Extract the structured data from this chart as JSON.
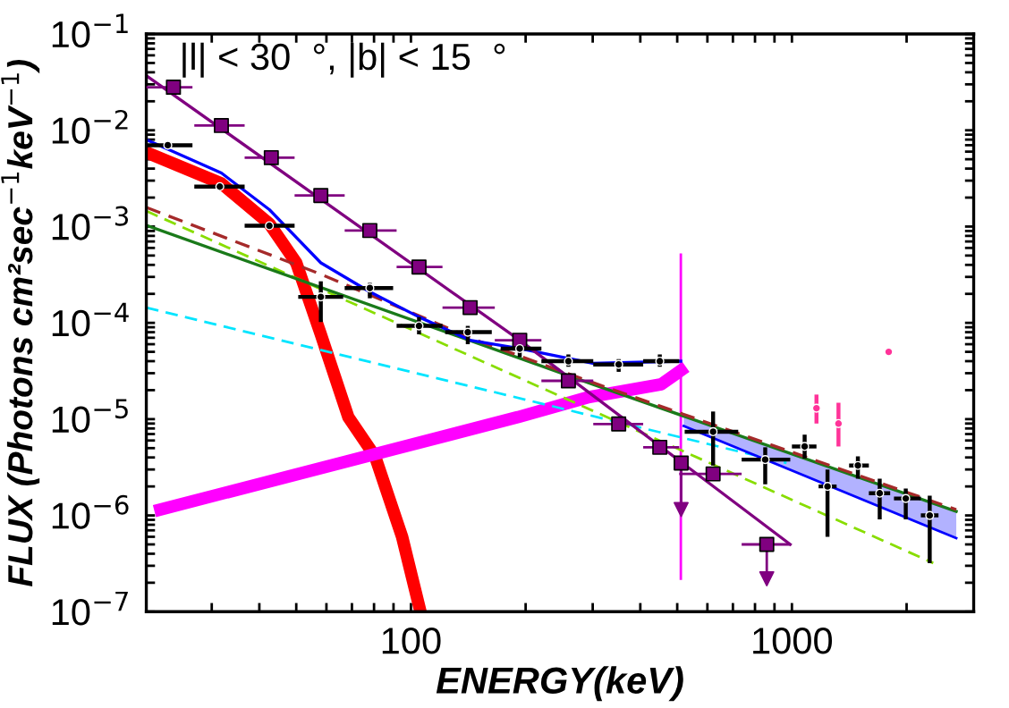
{
  "chart_data": {
    "type": "line",
    "xlabel": "ENERGY(keV)",
    "ylabel": "FLUX (Photons cm²sec$^{−1}$keV$^{−1}$)",
    "annotations": [
      "|l| < 30  °, |b| < 15  °"
    ],
    "log": "xy",
    "grid": false,
    "legend": false,
    "xlim": [
      20.2,
      3000
    ],
    "ylim": [
      1e-07,
      0.1
    ],
    "xticks": [
      {
        "value": 30,
        "label": null
      },
      {
        "value": 40,
        "label": null
      },
      {
        "value": 50,
        "label": null
      },
      {
        "value": 60,
        "label": null
      },
      {
        "value": 70,
        "label": null
      },
      {
        "value": 80,
        "label": null
      },
      {
        "value": 90,
        "label": null
      },
      100,
      {
        "value": 200,
        "label": null
      },
      {
        "value": 300,
        "label": null
      },
      {
        "value": 400,
        "label": null
      },
      {
        "value": 500,
        "label": null
      },
      {
        "value": 600,
        "label": null
      },
      {
        "value": 700,
        "label": null
      },
      {
        "value": 800,
        "label": null
      },
      {
        "value": 900,
        "label": null
      },
      1000,
      {
        "value": 2000,
        "label": null
      }
    ],
    "yticks": [
      {
        "value": 1e-07,
        "label": "10$^{−7}$"
      },
      {
        "value": 2e-07,
        "label": null
      },
      {
        "value": 3e-07,
        "label": null
      },
      {
        "value": 4e-07,
        "label": null
      },
      {
        "value": 5e-07,
        "label": null
      },
      {
        "value": 6e-07,
        "label": null
      },
      {
        "value": 7e-07,
        "label": null
      },
      {
        "value": 8e-07,
        "label": null
      },
      {
        "value": 9e-07,
        "label": null
      },
      {
        "value": 1e-06,
        "label": "10$^{−6}$"
      },
      {
        "value": 2e-06,
        "label": null
      },
      {
        "value": 3e-06,
        "label": null
      },
      {
        "value": 4e-06,
        "label": null
      },
      {
        "value": 5e-06,
        "label": null
      },
      {
        "value": 6e-06,
        "label": null
      },
      {
        "value": 7e-06,
        "label": null
      },
      {
        "value": 8e-06,
        "label": null
      },
      {
        "value": 9e-06,
        "label": null
      },
      {
        "value": 1e-05,
        "label": "10$^{−5}$"
      },
      {
        "value": 2e-05,
        "label": null
      },
      {
        "value": 3e-05,
        "label": null
      },
      {
        "value": 4e-05,
        "label": null
      },
      {
        "value": 5e-05,
        "label": null
      },
      {
        "value": 6e-05,
        "label": null
      },
      {
        "value": 7e-05,
        "label": null
      },
      {
        "value": 8e-05,
        "label": null
      },
      {
        "value": 9e-05,
        "label": null
      },
      {
        "value": 0.0001,
        "label": "10$^{−4}$"
      },
      {
        "value": 0.0002,
        "label": null
      },
      {
        "value": 0.0003,
        "label": null
      },
      {
        "value": 0.0004,
        "label": null
      },
      {
        "value": 0.0005,
        "label": null
      },
      {
        "value": 0.0006,
        "label": null
      },
      {
        "value": 0.0007,
        "label": null
      },
      {
        "value": 0.0008,
        "label": null
      },
      {
        "value": 0.0009,
        "label": null
      },
      {
        "value": 0.001,
        "label": "10$^{−3}$"
      },
      {
        "value": 0.002,
        "label": null
      },
      {
        "value": 0.003,
        "label": null
      },
      {
        "value": 0.004,
        "label": null
      },
      {
        "value": 0.005,
        "label": null
      },
      {
        "value": 0.006,
        "label": null
      },
      {
        "value": 0.007,
        "label": null
      },
      {
        "value": 0.008,
        "label": null
      },
      {
        "value": 0.009,
        "label": null
      },
      {
        "value": 0.01,
        "label": "10$^{−2}$"
      },
      {
        "value": 0.02,
        "label": null
      },
      {
        "value": 0.03,
        "label": null
      },
      {
        "value": 0.04,
        "label": null
      },
      {
        "value": 0.05,
        "label": null
      },
      {
        "value": 0.06,
        "label": null
      },
      {
        "value": 0.07,
        "label": null
      },
      {
        "value": 0.08,
        "label": null
      },
      {
        "value": 0.09,
        "label": null
      },
      {
        "value": 0.1,
        "label": "10$^{−1}$"
      }
    ],
    "series": [
      {
        "color": "#ff0000",
        "line_style": "solid",
        "x": [
          20.2,
          31.8,
          42.5,
          50,
          58,
          68.5,
          80.5,
          94.8,
          105.5
        ],
        "values": [
          0.0059,
          0.0028,
          0.00107,
          0.00042,
          7.6e-05,
          1.05e-05,
          4.1e-06,
          6e-07,
          1.07e-07
        ]
      },
      {
        "color": "#ff00ff",
        "line_style": "solid",
        "x": [
          22,
          191,
          294,
          454,
          511
        ],
        "values": [
          1.15e-06,
          1.05e-05,
          1.7e-05,
          2.3e-05,
          3.2e-05
        ]
      },
      {
        "color": "#ff00ff",
        "line_style": "solid",
        "x": [
          511,
          511
        ],
        "values": [
          2.2e-07,
          0.00051
        ]
      },
      {
        "color": "#00e5ff",
        "line_style": "dashed",
        "x": [
          20.2,
          968
        ],
        "values": [
          0.000144,
          3.5e-06
        ]
      },
      {
        "color": "#88dd00",
        "line_style": "dashed",
        "x": [
          20.2,
          2350
        ],
        "values": [
          0.00145,
          3.2e-07
        ]
      },
      {
        "color": "#1a7a1a",
        "line_style": "solid",
        "x": [
          20.2,
          300,
          2700
        ],
        "values": [
          0.00103,
          2.3e-05,
          1.1e-06
        ]
      },
      {
        "color": "#a52a2a",
        "line_style": "dashed",
        "x": [
          20.2,
          58,
          150,
          300,
          2700
        ],
        "values": [
          0.00158,
          0.00032,
          6.5e-05,
          2.4e-05,
          1.15e-06
        ]
      },
      {
        "color": "#0000ff",
        "line_style": "solid",
        "x": [
          20.2,
          31.8,
          42.5,
          58,
          78,
          105,
          143,
          193,
          300,
          511
        ],
        "values": [
          0.008,
          0.0036,
          0.0015,
          0.00042,
          0.00021,
          0.000115,
          6.6e-05,
          5.4e-05,
          3.8e-05,
          4e-05
        ]
      },
      {
        "color": "#0000ff",
        "line_style": "solid",
        "x": [
          520,
          2700
        ],
        "values": [
          8.5e-06,
          5.8e-07
        ],
        "lower": [
          8.5e-06,
          5.8e-07
        ],
        "upper": [
          1.1e-05,
          1.1e-06
        ]
      },
      {
        "color": "#800080",
        "line_style": "solid",
        "x": [
          20.2,
          193,
          990
        ],
        "values": [
          0.037,
          6.6e-05,
          5e-07
        ]
      },
      {
        "type": "scatter",
        "color": "#800080",
        "marker": "square",
        "x": [
          23.8,
          31.8,
          43,
          58,
          78,
          105,
          143,
          193,
          259,
          351,
          450,
          512,
          621,
          859
        ],
        "values": [
          0.028,
          0.0112,
          0.0052,
          0.0021,
          0.00091,
          0.00038,
          0.000144,
          6.6e-05,
          2.5e-05,
          8.9e-06,
          5.1e-06,
          3.5e-06,
          2.7e-06,
          5e-07
        ],
        "errors": [
          null,
          null,
          null,
          null,
          null,
          null,
          null,
          null,
          null,
          null,
          null,
          [
            1.15e-06,
            3.5e-06
          ],
          null,
          [
            2.2e-07,
            5e-07
          ]
        ],
        "xerrors": [
          [
            20.2,
            26.7
          ],
          [
            27,
            36.6
          ],
          [
            36.6,
            49.5
          ],
          [
            49.5,
            67
          ],
          [
            67,
            91.7
          ],
          [
            91.7,
            121
          ],
          [
            121,
            166
          ],
          [
            166,
            220
          ],
          [
            220,
            301
          ],
          [
            301,
            407
          ],
          [
            407,
            506
          ],
          null,
          [
            506,
            738
          ],
          [
            738,
            990
          ]
        ]
      },
      {
        "type": "scatter",
        "color": "#800080",
        "marker": "triangle",
        "x": [
          512,
          859
        ],
        "values": [
          1.15e-06,
          2.2e-07
        ]
      },
      {
        "type": "scatter",
        "color": "#ff3399",
        "marker": "circle",
        "x": [
          1160,
          1325,
          1795
        ],
        "values": [
          1.3e-05,
          9e-06,
          5e-05
        ],
        "errors": [
          [
            9e-06,
            1.8e-05
          ],
          [
            5.2e-06,
            1.48e-05
          ],
          [
            4.6e-05,
            5.4e-05
          ]
        ]
      },
      {
        "type": "scatter",
        "color": "#000000",
        "marker": "circle",
        "x": [
          23,
          31.5,
          42.5,
          58,
          78,
          105,
          141,
          193,
          259,
          351,
          450,
          621,
          851,
          1080,
          1240,
          1490,
          1700,
          1990,
          2300
        ],
        "values": [
          0.007,
          0.0026,
          0.00102,
          0.000186,
          0.00023,
          9.3e-05,
          8e-05,
          5.4e-05,
          4e-05,
          3.7e-05,
          4e-05,
          7.4e-06,
          3.8e-06,
          5.2e-06,
          2e-06,
          3.3e-06,
          1.7e-06,
          1.5e-06,
          1e-06
        ],
        "errors": [
          null,
          null,
          null,
          [
            0.000102,
            0.00027
          ],
          [
            0.00018,
            0.00026
          ],
          [
            7.6e-05,
            0.000115
          ],
          [
            6e-05,
            9.3e-05
          ],
          [
            4.4e-05,
            6.6e-05
          ],
          [
            3.5e-05,
            4.7e-05
          ],
          [
            3.1e-05,
            4.2e-05
          ],
          [
            3.5e-05,
            4.7e-05
          ],
          [
            3.3e-06,
            1.2e-05
          ],
          [
            2.1e-06,
            5.1e-06
          ],
          [
            3.9e-06,
            6.9e-06
          ],
          [
            6e-07,
            3e-06
          ],
          [
            2.4e-06,
            4.1e-06
          ],
          [
            9.1e-07,
            2.4e-06
          ],
          [
            9.1e-07,
            1.9e-06
          ],
          [
            3.2e-07,
            1.6e-06
          ]
        ],
        "xerrors": [
          [
            20.2,
            26.7
          ],
          [
            27,
            36.6
          ],
          [
            36.6,
            49.5
          ],
          [
            50.6,
            66.4
          ],
          [
            67,
            89.8
          ],
          [
            91.7,
            121
          ],
          [
            123,
            163
          ],
          [
            172,
            220
          ],
          [
            220,
            301
          ],
          [
            301,
            407
          ],
          [
            407,
            506
          ],
          [
            523,
            723
          ],
          [
            738,
            990
          ],
          [
            1000,
            1160
          ],
          [
            1175,
            1310
          ],
          [
            1413,
            1592
          ],
          [
            1592,
            1811
          ],
          [
            1853,
            2180
          ],
          [
            2180,
            2425
          ]
        ]
      }
    ]
  }
}
